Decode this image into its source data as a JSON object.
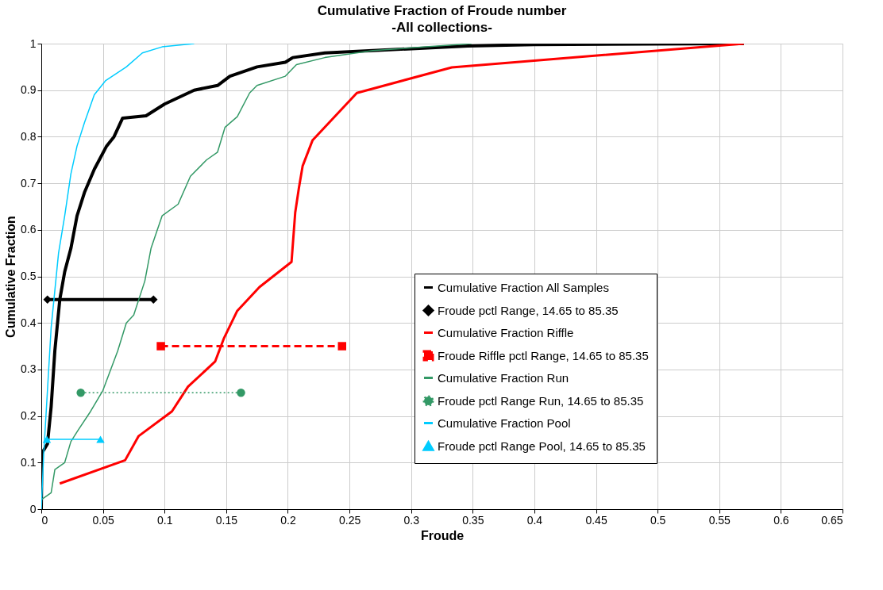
{
  "chart_data": {
    "type": "line",
    "title": "Cumulative Fraction of Froude number",
    "subtitle": "-All collections-",
    "xlabel": "Froude",
    "ylabel": "Cumulative Fraction",
    "xlim": [
      0,
      0.65
    ],
    "xticks": [
      0,
      0.05,
      0.1,
      0.15,
      0.2,
      0.25,
      0.3,
      0.35,
      0.4,
      0.45,
      0.5,
      0.55,
      0.6,
      0.65
    ],
    "ylim": [
      0,
      1
    ],
    "yticks": [
      0,
      0.1,
      0.2,
      0.3,
      0.4,
      0.5,
      0.6,
      0.7,
      0.8,
      0.9,
      1
    ],
    "grid": true,
    "legend": "bottom right",
    "series": [
      {
        "name": "Cumulative Fraction All Samples",
        "color": "#000000",
        "line_style": "solid",
        "marker": "none",
        "x": [
          0,
          0.0005,
          0.005,
          0.008,
          0.011,
          0.015,
          0.019,
          0.024,
          0.029,
          0.035,
          0.043,
          0.053,
          0.059,
          0.066,
          0.085,
          0.1,
          0.124,
          0.143,
          0.153,
          0.175,
          0.198,
          0.204,
          0.23,
          0.269,
          0.346,
          0.4,
          0.57
        ],
        "values": [
          0,
          0.12,
          0.14,
          0.22,
          0.34,
          0.45,
          0.51,
          0.56,
          0.63,
          0.68,
          0.73,
          0.78,
          0.8,
          0.84,
          0.845,
          0.87,
          0.9,
          0.91,
          0.93,
          0.95,
          0.96,
          0.97,
          0.98,
          0.985,
          0.995,
          0.998,
          1
        ]
      },
      {
        "name": "Froude pctl Range, 14.65 to 85.35",
        "color": "#000000",
        "line_style": "solid",
        "marker": "diamond",
        "x": [
          0.005,
          0.091
        ],
        "values": [
          0.45,
          0.45
        ]
      },
      {
        "name": "Cumulative Fraction Riffle",
        "color": "#ff0000",
        "line_style": "solid",
        "marker": "none",
        "x": [
          0.015,
          0.068,
          0.079,
          0.106,
          0.119,
          0.141,
          0.148,
          0.159,
          0.177,
          0.203,
          0.206,
          0.209,
          0.212,
          0.22,
          0.256,
          0.333,
          0.57
        ],
        "values": [
          0.055,
          0.105,
          0.157,
          0.21,
          0.263,
          0.317,
          0.366,
          0.426,
          0.477,
          0.531,
          0.637,
          0.69,
          0.737,
          0.792,
          0.894,
          0.949,
          1
        ]
      },
      {
        "name": "Froude Riffle pctl Range, 14.65 to 85.35",
        "color": "#ff0000",
        "line_style": "dashed",
        "marker": "square",
        "x": [
          0.097,
          0.244
        ],
        "values": [
          0.35,
          0.35
        ]
      },
      {
        "name": "Cumulative Fraction Run",
        "color": "#339966",
        "line_style": "solid",
        "marker": "none",
        "x": [
          0,
          0.008,
          0.011,
          0.019,
          0.024,
          0.03,
          0.04,
          0.05,
          0.062,
          0.069,
          0.075,
          0.084,
          0.089,
          0.098,
          0.111,
          0.121,
          0.134,
          0.143,
          0.149,
          0.159,
          0.169,
          0.175,
          0.198,
          0.207,
          0.23,
          0.269,
          0.349
        ],
        "values": [
          0.02,
          0.035,
          0.085,
          0.1,
          0.145,
          0.17,
          0.21,
          0.255,
          0.34,
          0.4,
          0.417,
          0.49,
          0.56,
          0.63,
          0.655,
          0.715,
          0.75,
          0.767,
          0.82,
          0.843,
          0.894,
          0.91,
          0.93,
          0.955,
          0.97,
          0.985,
          1
        ]
      },
      {
        "name": "Froude pctl Range Run, 14.65 to 85.35",
        "color": "#339966",
        "line_style": "dotted",
        "marker": "circle",
        "x": [
          0.032,
          0.162
        ],
        "values": [
          0.25,
          0.25
        ]
      },
      {
        "name": "Cumulative Fraction Pool",
        "color": "#00ccff",
        "line_style": "solid",
        "marker": "none",
        "x": [
          0,
          0.002,
          0.008,
          0.014,
          0.019,
          0.024,
          0.029,
          0.035,
          0.043,
          0.052,
          0.069,
          0.082,
          0.098,
          0.124
        ],
        "values": [
          0,
          0.12,
          0.39,
          0.55,
          0.63,
          0.72,
          0.78,
          0.83,
          0.89,
          0.92,
          0.95,
          0.98,
          0.993,
          1
        ]
      },
      {
        "name": "Froude pctl Range Pool, 14.65 to 85.35",
        "color": "#00ccff",
        "line_style": "solid",
        "marker": "triangle",
        "x": [
          0.0045,
          0.048
        ],
        "values": [
          0.15,
          0.15
        ]
      }
    ]
  }
}
